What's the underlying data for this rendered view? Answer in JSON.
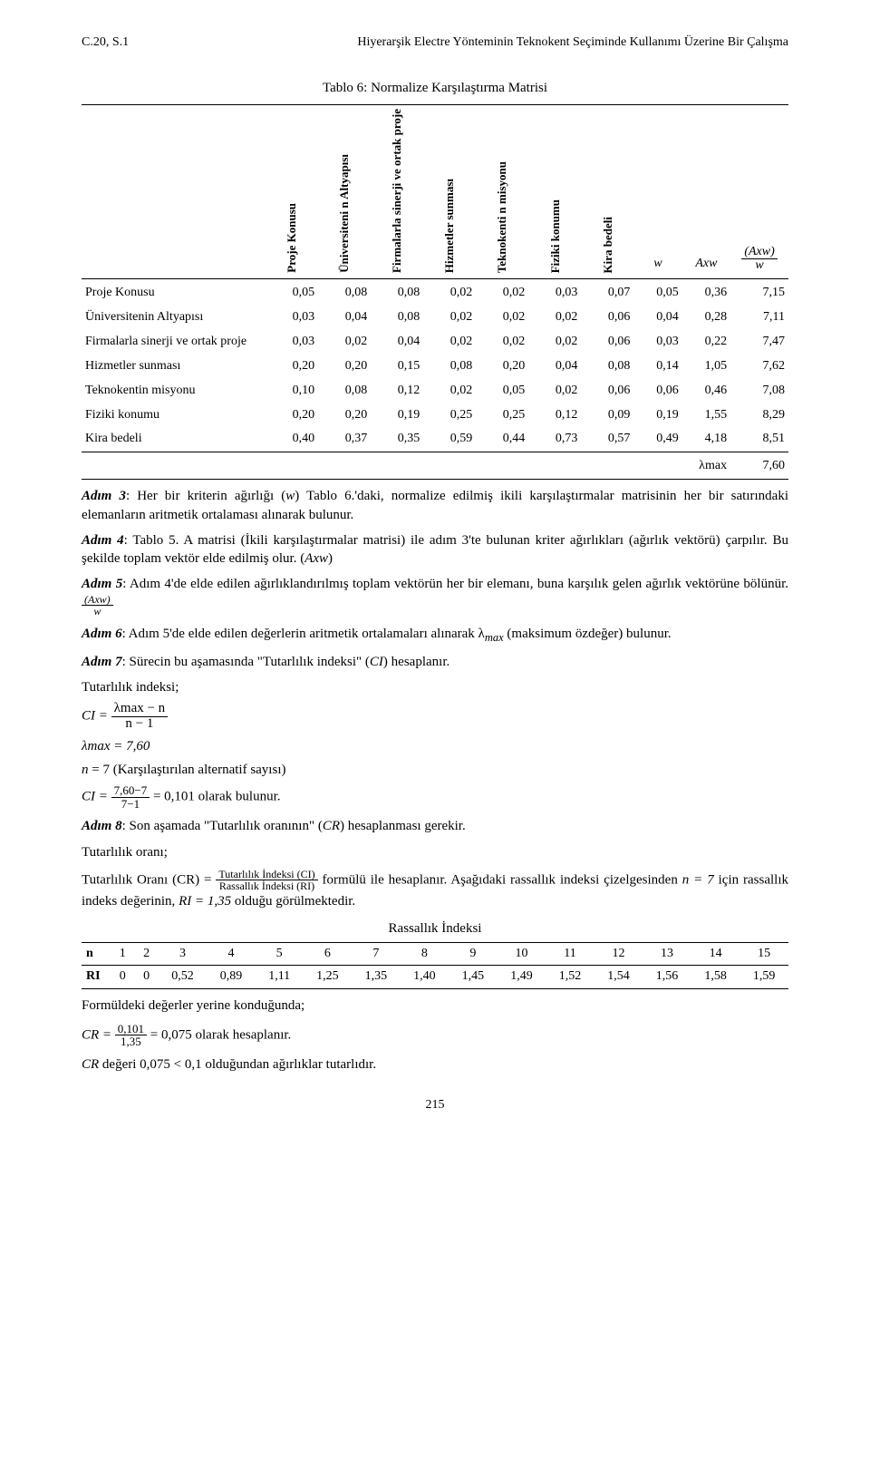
{
  "header": {
    "left": "C.20, S.1",
    "title": "Hiyerarşik Electre Yönteminin Teknokent Seçiminde Kullanımı Üzerine Bir Çalışma"
  },
  "table6": {
    "caption": "Tablo 6: Normalize Karşılaştırma Matrisi",
    "col_headers_vert": [
      "Proje Konusu",
      "Üniversiteni n Altyapısı",
      "Firmalarla sinerji ve ortak proje",
      "Hizmetler sunması",
      "Teknokenti n misyonu",
      "Fiziki konumu",
      "Kira bedeli"
    ],
    "col_headers_horiz": [
      "w",
      "Axw",
      "(Axw) / w"
    ],
    "rows": [
      {
        "label": "Proje Konusu",
        "vals": [
          "0,05",
          "0,08",
          "0,08",
          "0,02",
          "0,02",
          "0,03",
          "0,07",
          "0,05",
          "0,36",
          "7,15"
        ]
      },
      {
        "label": "Üniversitenin Altyapısı",
        "vals": [
          "0,03",
          "0,04",
          "0,08",
          "0,02",
          "0,02",
          "0,02",
          "0,06",
          "0,04",
          "0,28",
          "7,11"
        ]
      },
      {
        "label": "Firmalarla sinerji ve ortak proje",
        "vals": [
          "0,03",
          "0,02",
          "0,04",
          "0,02",
          "0,02",
          "0,02",
          "0,06",
          "0,03",
          "0,22",
          "7,47"
        ]
      },
      {
        "label": "Hizmetler sunması",
        "vals": [
          "0,20",
          "0,20",
          "0,15",
          "0,08",
          "0,20",
          "0,04",
          "0,08",
          "0,14",
          "1,05",
          "7,62"
        ]
      },
      {
        "label": "Teknokentin misyonu",
        "vals": [
          "0,10",
          "0,08",
          "0,12",
          "0,02",
          "0,05",
          "0,02",
          "0,06",
          "0,06",
          "0,46",
          "7,08"
        ]
      },
      {
        "label": "Fiziki konumu",
        "vals": [
          "0,20",
          "0,20",
          "0,19",
          "0,25",
          "0,25",
          "0,12",
          "0,09",
          "0,19",
          "1,55",
          "8,29"
        ]
      },
      {
        "label": "Kira bedeli",
        "vals": [
          "0,40",
          "0,37",
          "0,35",
          "0,59",
          "0,44",
          "0,73",
          "0,57",
          "0,49",
          "4,18",
          "8,51"
        ]
      }
    ],
    "lambda_label": "λmax",
    "lambda_val": "7,60"
  },
  "steps": {
    "s3a": "Adım 3",
    "s3b": ": Her bir kriterin ağırlığı (",
    "s3b2": ") Tablo 6.'daki, normalize edilmiş ikili karşılaştırmalar matrisinin her bir satırındaki elemanların aritmetik ortalaması alınarak bulunur.",
    "s4a": "Adım 4",
    "s4b": ": Tablo 5. A matrisi (İkili karşılaştırmalar matrisi) ile adım 3'te bulunan kriter ağırlıkları (ağırlık vektörü) çarpılır. Bu şekilde toplam vektör elde edilmiş olur. (",
    "s4c": ")",
    "s5a": "Adım 5",
    "s5b": ": Adım 4'de elde edilen ağırlıklandırılmış toplam vektörün her bir elemanı, buna karşılık gelen ağırlık vektörüne bölünür. ",
    "s6a": "Adım 6",
    "s6b": ": Adım 5'de elde edilen değerlerin aritmetik ortalamaları alınarak λ",
    "s6c": " (maksimum özdeğer) bulunur.",
    "s7a": "Adım 7",
    "s7b": ": Sürecin bu aşamasında \"Tutarlılık indeksi\" (",
    "s7c": ") hesaplanır.",
    "tut_label": "Tutarlılık indeksi;",
    "ci_num": "λmax − n",
    "ci_den": "n − 1",
    "lambda_eq": "λmax = 7,60",
    "n_eq": "n = 7 (Karşılaştırılan alternatif sayısı)",
    "ci2_num": "7,60−7",
    "ci2_den": "7−1",
    "ci2_res": " = 0,101 olarak bulunur.",
    "s8a": "Adım 8",
    "s8b": ": Son aşamada \"Tutarlılık oranının\" (",
    "s8c": ") hesaplanması gerekir.",
    "tut_oran_lbl": "Tutarlılık oranı;",
    "cr_lhs": "Tutarlılık Oranı (CR)  =  ",
    "cr_num": "Tutarlılık İndeksi (CI)",
    "cr_den": "Rassallık İndeksi (RI)",
    "cr_tail1": " formülü ile hesaplanır. Aşağıdaki rassallık indeksi çizelgesinden ",
    "cr_tail_n": "n = 7",
    "cr_tail2": " için rassallık indeks değerinin, ",
    "cr_tail_ri": "RI = 1,35",
    "cr_tail3": " olduğu görülmektedir.",
    "ri_caption": "Rassallık İndeksi",
    "form_intro": "Formüldeki değerler yerine konduğunda;",
    "cr2_num": "0,101",
    "cr2_den": "1,35",
    "cr2_res": " = 0,075 olarak hesaplanır.",
    "cr_final": "CR değeri 0,075 < 0,1 olduğundan ağırlıklar tutarlıdır."
  },
  "ri_table": {
    "header": [
      "n",
      "1",
      "2",
      "3",
      "4",
      "5",
      "6",
      "7",
      "8",
      "9",
      "10",
      "11",
      "12",
      "13",
      "14",
      "15"
    ],
    "row": [
      "RI",
      "0",
      "0",
      "0,52",
      "0,89",
      "1,11",
      "1,25",
      "1,35",
      "1,40",
      "1,45",
      "1,49",
      "1,52",
      "1,54",
      "1,56",
      "1,58",
      "1,59"
    ]
  },
  "math_tokens": {
    "w": "w",
    "Axw": "Axw",
    "CI": "CI",
    "CR": "CR",
    "max": "max",
    "open_frac_axw_num": "(Axw)",
    "open_frac_axw_den": "w"
  },
  "pagenum": "215"
}
